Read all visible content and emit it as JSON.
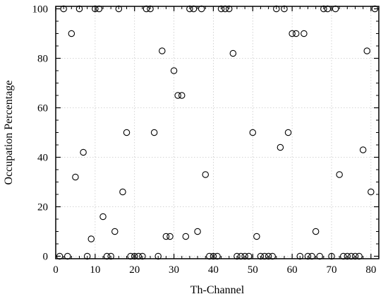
{
  "chart_data": {
    "type": "scatter",
    "title": "",
    "xlabel": "Th-Channel",
    "ylabel": "Occupation Percentage",
    "xlim": [
      0,
      82
    ],
    "ylim": [
      -1,
      101
    ],
    "xticks": [
      0,
      10,
      20,
      30,
      40,
      50,
      60,
      70,
      80
    ],
    "yticks": [
      0,
      20,
      40,
      60,
      80,
      100
    ],
    "grid": true,
    "legend": "none",
    "marker": "open-circle",
    "marker_color": "#000000",
    "grid_color": "#c8c8c8",
    "series": [
      {
        "x": [
          1,
          2,
          3,
          4,
          5,
          6,
          7,
          8,
          9,
          10,
          11,
          12,
          13,
          14,
          15,
          16,
          17,
          18,
          19,
          20,
          21,
          22,
          23,
          24,
          25,
          26,
          27,
          28,
          29,
          30,
          31,
          32,
          33,
          34,
          35,
          36,
          37,
          38,
          39,
          40,
          41,
          42,
          43,
          44,
          45,
          46,
          47,
          48,
          49,
          50,
          51,
          52,
          53,
          54,
          55,
          56,
          57,
          58,
          59,
          60,
          61,
          62,
          63,
          64,
          65,
          66,
          67,
          68,
          69,
          70,
          71,
          72,
          73,
          74,
          75,
          76,
          77,
          78,
          79,
          80,
          81
        ],
        "y": [
          0,
          100,
          0,
          90,
          32,
          100,
          42,
          0,
          7,
          100,
          100,
          16,
          0,
          0,
          10,
          100,
          26,
          50,
          0,
          0,
          0,
          0,
          100,
          100,
          50,
          0,
          83,
          8,
          8,
          75,
          65,
          65,
          8,
          100,
          100,
          10,
          100,
          33,
          0,
          0,
          0,
          100,
          100,
          100,
          82,
          0,
          0,
          0,
          0,
          50,
          8,
          0,
          0,
          0,
          0,
          100,
          44,
          100,
          50,
          90,
          90,
          0,
          90,
          0,
          0,
          10,
          0,
          100,
          100,
          0,
          100,
          33,
          0,
          0,
          0,
          0,
          0,
          43,
          83,
          26,
          100
        ]
      }
    ]
  }
}
